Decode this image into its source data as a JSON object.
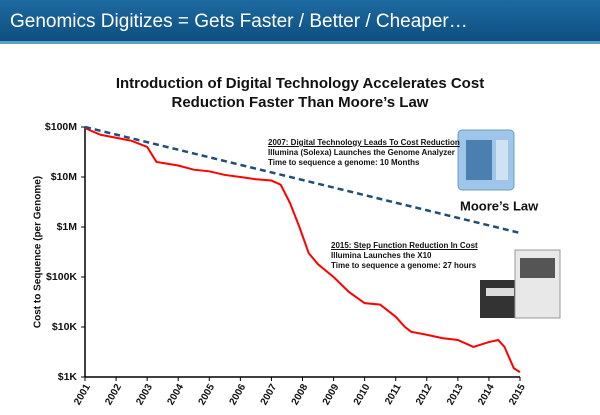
{
  "header": {
    "title": "Genomics Digitizes = Gets Faster / Better / Cheaper…"
  },
  "chart_data": {
    "type": "line",
    "title": "Introduction of Digital Technology Accelerates Cost Reduction Faster Than Moore’s Law",
    "ylabel": "Cost to Sequence (per Genome)",
    "yscale": "log",
    "xlim": [
      2001,
      2015
    ],
    "xticks": [
      2001,
      2002,
      2003,
      2004,
      2005,
      2006,
      2007,
      2008,
      2009,
      2010,
      2011,
      2012,
      2013,
      2014,
      2015
    ],
    "ylim": [
      1000,
      100000000
    ],
    "yticks": [
      {
        "value": 100000000,
        "label": "$100M"
      },
      {
        "value": 10000000,
        "label": "$10M"
      },
      {
        "value": 1000000,
        "label": "$1M"
      },
      {
        "value": 100000,
        "label": "$100K"
      },
      {
        "value": 10000,
        "label": "$10K"
      },
      {
        "value": 1000,
        "label": "$1K"
      }
    ],
    "series": [
      {
        "color": "#ff0000",
        "x": [
          2001.0,
          2001.5,
          2002.0,
          2002.5,
          2003.0,
          2003.3,
          2004.0,
          2004.5,
          2005.0,
          2005.5,
          2006.0,
          2006.5,
          2007.0,
          2007.3,
          2007.6,
          2007.9,
          2008.2,
          2008.5,
          2009.0,
          2009.5,
          2010.0,
          2010.5,
          2011.0,
          2011.3,
          2011.5,
          2012.0,
          2012.5,
          2013.0,
          2013.5,
          2014.0,
          2014.3,
          2014.5,
          2014.8,
          2015.0
        ],
        "values": [
          95000000,
          70000000,
          61000000,
          53000000,
          40000000,
          20000000,
          17000000,
          14000000,
          13000000,
          11000000,
          10000000,
          9000000,
          8500000,
          7000000,
          3000000,
          1000000,
          300000,
          180000,
          100000,
          50000,
          30000,
          28000,
          16000,
          10000,
          8000,
          7000,
          6000,
          5500,
          4000,
          5000,
          5500,
          4000,
          1500,
          1250
        ]
      },
      {
        "name": "Moore’s Law",
        "color": "#1f4e79",
        "dashed": true,
        "x": [
          2001,
          2015
        ],
        "values": [
          100000000,
          760000
        ]
      }
    ],
    "annotations": [
      {
        "heading": "2007: Digital Technology Leads To Cost Reduction",
        "lines": [
          "Illumina (Solexa) Launches the Genome Analyzer",
          "Time to sequence a genome: 10 Months"
        ]
      },
      {
        "heading": "2015: Step Function Reduction In Cost",
        "lines": [
          "Illumina Launches the X10",
          "Time to sequence a genome: 27 hours"
        ]
      }
    ]
  }
}
